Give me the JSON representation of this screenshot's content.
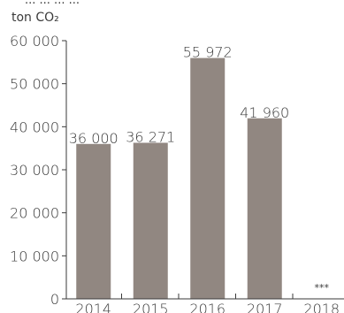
{
  "chart_data": {
    "type": "bar",
    "title_fragment": "... ... ... ...",
    "unit_label": "ton CO₂",
    "categories": [
      "2014",
      "2015",
      "2016",
      "2017",
      "2018"
    ],
    "values": [
      36000,
      36271,
      55972,
      41960,
      null
    ],
    "value_labels": [
      "36 000",
      "36 271",
      "55 972",
      "41 960",
      "***"
    ],
    "y_ticks": [
      0,
      10000,
      20000,
      30000,
      40000,
      50000,
      60000
    ],
    "y_tick_labels": [
      "0",
      "10 000",
      "20 000",
      "30 000",
      "40 000",
      "50 000",
      "60 000"
    ],
    "ylim": [
      0,
      60000
    ],
    "grid": false,
    "colors": {
      "bar": "#918781",
      "axis": "#3a3a3a",
      "text": "#3a3a3a"
    }
  }
}
